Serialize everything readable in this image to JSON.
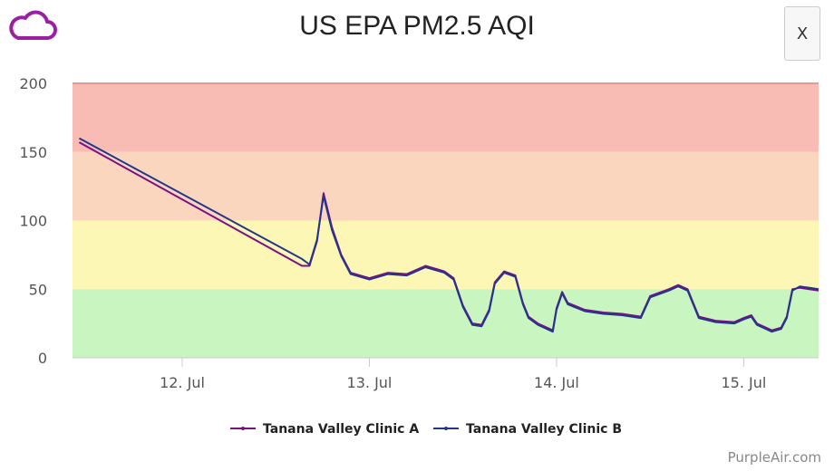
{
  "header": {
    "title": "US EPA PM2.5 AQI",
    "close_label": "X",
    "logo_icon": "cloud-icon"
  },
  "credit": "PurpleAir.com",
  "chart_data": {
    "type": "line",
    "title": "US EPA PM2.5 AQI",
    "xlabel": "",
    "ylabel": "",
    "ylim": [
      0,
      200
    ],
    "xlim": [
      11.414,
      15.4
    ],
    "x_unit": "day of July",
    "yticks": [
      0,
      50,
      100,
      150,
      200
    ],
    "xticks": [
      {
        "x": 12,
        "label": "12. Jul"
      },
      {
        "x": 13,
        "label": "13. Jul"
      },
      {
        "x": 14,
        "label": "14. Jul"
      },
      {
        "x": 15,
        "label": "15. Jul"
      }
    ],
    "bands": [
      {
        "from": 0,
        "to": 50,
        "color": "#c9f5c1"
      },
      {
        "from": 50,
        "to": 100,
        "color": "#fdf7b6"
      },
      {
        "from": 100,
        "to": 150,
        "color": "#fbd6be"
      },
      {
        "from": 150,
        "to": 200,
        "color": "#f8bcb5"
      }
    ],
    "legend_position": "bottom",
    "series": [
      {
        "name": "Tanana Valley Clinic A",
        "color": "#7a0f86",
        "x": [
          11.45,
          12.64,
          12.68,
          12.72,
          12.755,
          12.8,
          12.85,
          12.9,
          13.0,
          13.1,
          13.2,
          13.3,
          13.4,
          13.45,
          13.5,
          13.55,
          13.6,
          13.64,
          13.67,
          13.72,
          13.78,
          13.82,
          13.85,
          13.9,
          13.98,
          14.0,
          14.03,
          14.06,
          14.15,
          14.25,
          14.35,
          14.45,
          14.5,
          14.6,
          14.65,
          14.7,
          14.76,
          14.85,
          14.95,
          15.0,
          15.04,
          15.07,
          15.15,
          15.2,
          15.23,
          15.26,
          15.3,
          15.4
        ],
        "y": [
          157,
          67,
          67,
          85,
          120,
          95,
          75,
          62,
          58,
          62,
          61,
          67,
          63,
          58,
          38,
          25,
          24,
          35,
          55,
          63,
          60,
          40,
          30,
          25,
          20,
          36,
          48,
          40,
          35,
          33,
          32,
          30,
          45,
          50,
          53,
          50,
          30,
          27,
          26,
          29,
          31,
          25,
          20,
          22,
          30,
          50,
          51,
          49
        ]
      },
      {
        "name": "Tanana Valley Clinic B",
        "color": "#23378a",
        "x": [
          11.45,
          12.64,
          12.68,
          12.72,
          12.755,
          12.8,
          12.85,
          12.9,
          13.0,
          13.1,
          13.2,
          13.3,
          13.4,
          13.45,
          13.5,
          13.55,
          13.6,
          13.64,
          13.67,
          13.72,
          13.78,
          13.82,
          13.85,
          13.9,
          13.98,
          14.0,
          14.03,
          14.06,
          14.15,
          14.25,
          14.35,
          14.45,
          14.5,
          14.6,
          14.65,
          14.7,
          14.76,
          14.85,
          14.95,
          15.0,
          15.04,
          15.07,
          15.15,
          15.2,
          15.23,
          15.26,
          15.3,
          15.4
        ],
        "y": [
          160,
          72,
          68,
          86,
          118,
          93,
          74,
          61,
          57,
          61,
          60,
          66,
          62,
          57,
          37,
          24,
          23,
          34,
          54,
          62,
          59,
          39,
          29,
          24,
          19,
          35,
          47,
          39,
          34,
          32,
          31,
          29,
          44,
          49,
          52,
          49,
          29,
          26,
          25,
          28,
          30,
          24,
          19,
          21,
          29,
          49,
          52,
          50
        ]
      }
    ]
  }
}
